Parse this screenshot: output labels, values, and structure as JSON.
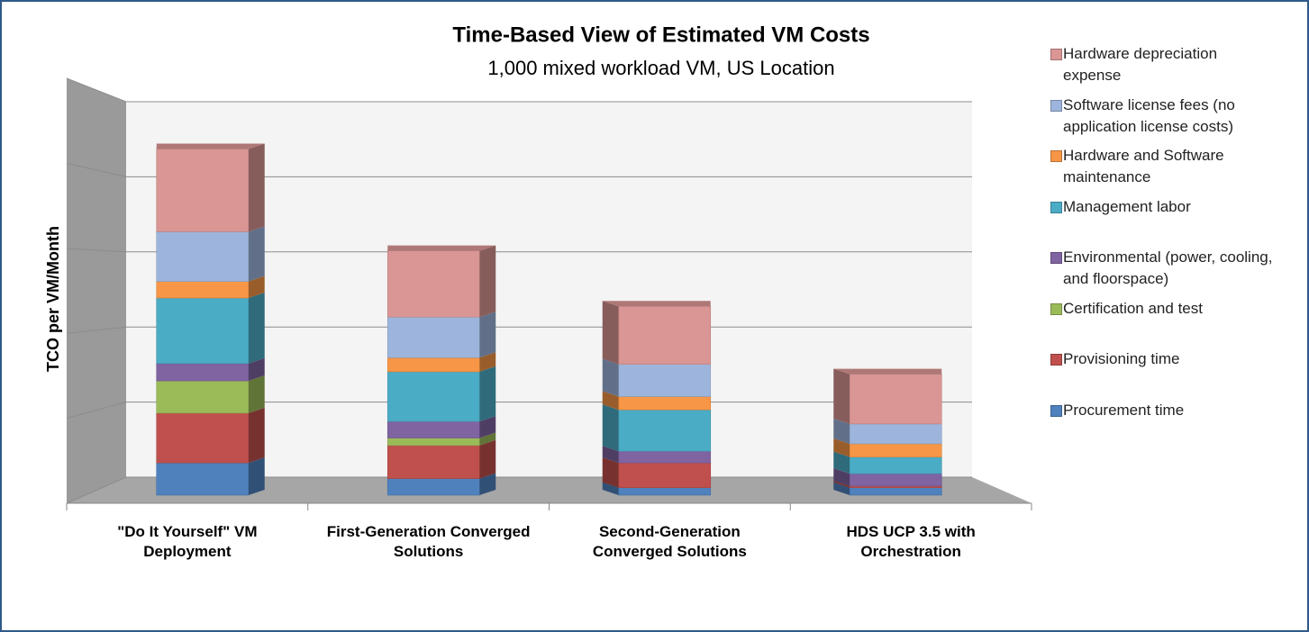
{
  "chart_data": {
    "type": "bar3d_stacked",
    "title": "Time-Based View of Estimated VM Costs",
    "subtitle": "1,000 mixed workload VM, US Location",
    "y_label": "TCO per VM/Month",
    "categories": [
      "\"Do It Yourself\" VM Deployment",
      "First-Generation Converged Solutions",
      "Second-Generation Converged Solutions",
      "HDS UCP 3.5 with Orchestration"
    ],
    "series": [
      {
        "name": "Procurement time",
        "color": "#4f81bd",
        "values": [
          0.39,
          0.2,
          0.09,
          0.09
        ]
      },
      {
        "name": "Provisioning time",
        "color": "#c0504d",
        "values": [
          0.6,
          0.4,
          0.3,
          0.02
        ]
      },
      {
        "name": "Certification and test",
        "color": "#9bbb59",
        "values": [
          0.39,
          0.09,
          0,
          0
        ]
      },
      {
        "name": "Environmental (power, cooling, and floorspace)",
        "color": "#8064a2",
        "values": [
          0.21,
          0.2,
          0.14,
          0.15
        ]
      },
      {
        "name": "Management labor",
        "color": "#4bacc6",
        "values": [
          0.79,
          0.6,
          0.5,
          0.2
        ]
      },
      {
        "name": "Hardware and Software maintenance",
        "color": "#f79646",
        "values": [
          0.2,
          0.17,
          0.16,
          0.16
        ]
      },
      {
        "name": "Software license fees (no application license costs)",
        "color": "#9db5dc",
        "values": [
          0.6,
          0.49,
          0.39,
          0.24
        ]
      },
      {
        "name": "Hardware depreciation expense",
        "color": "#d99694",
        "values": [
          1.0,
          0.8,
          0.7,
          0.6
        ]
      }
    ],
    "ylim": [
      0,
      5
    ],
    "yticks": [
      0,
      1,
      2,
      3,
      4,
      5
    ],
    "grid": true
  }
}
